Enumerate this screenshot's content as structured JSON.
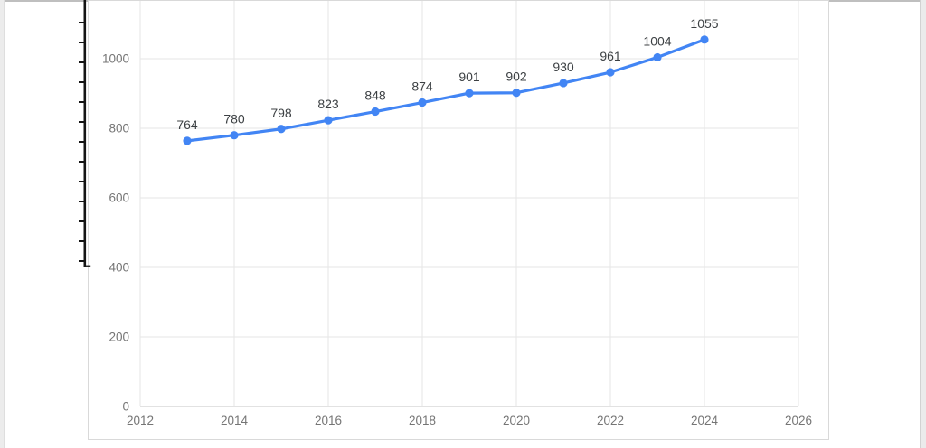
{
  "chart_data": {
    "type": "line",
    "title": "",
    "x": [
      2013,
      2014,
      2015,
      2016,
      2017,
      2018,
      2019,
      2020,
      2021,
      2022,
      2023,
      2024
    ],
    "values": [
      764,
      780,
      798,
      823,
      848,
      874,
      901,
      902,
      930,
      961,
      1004,
      1055
    ],
    "data_labels_visible": true,
    "x_ticks": [
      2012,
      2014,
      2016,
      2018,
      2020,
      2022,
      2024,
      2026
    ],
    "y_ticks": [
      0,
      200,
      400,
      600,
      800,
      1000
    ],
    "xlim": [
      2012,
      2026
    ],
    "ylim": [
      0,
      1200
    ],
    "grid": "on",
    "legend": "none",
    "colors": {
      "line": "#4285f4",
      "point": "#4285f4",
      "data_label": "#3c4043",
      "axis_label": "#757575",
      "gridline": "#e6e6e6",
      "axis_line": "#c6c6c6"
    }
  }
}
